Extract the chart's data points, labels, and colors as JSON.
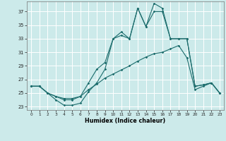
{
  "title": "",
  "xlabel": "Humidex (Indice chaleur)",
  "ylabel": "",
  "bg_color": "#cceaea",
  "line_color": "#1a6b6b",
  "grid_color": "#ffffff",
  "xlim": [
    -0.5,
    23.5
  ],
  "ylim": [
    22.5,
    38.5
  ],
  "yticks": [
    23,
    25,
    27,
    29,
    31,
    33,
    35,
    37
  ],
  "xticks": [
    0,
    1,
    2,
    3,
    4,
    5,
    6,
    7,
    8,
    9,
    10,
    11,
    12,
    13,
    14,
    15,
    16,
    17,
    18,
    19,
    20,
    21,
    22,
    23
  ],
  "line1_x": [
    0,
    1,
    2,
    3,
    4,
    5,
    6,
    7,
    8,
    9,
    10,
    11,
    12,
    13,
    14,
    15,
    16,
    17,
    18,
    19,
    20,
    21,
    22,
    23
  ],
  "line1_y": [
    26,
    26,
    25,
    24,
    23.2,
    23.2,
    23.5,
    25.2,
    26.5,
    28.5,
    33,
    33.5,
    33,
    37.5,
    34.8,
    38.2,
    37.5,
    33,
    33,
    33,
    26,
    26.2,
    26.5,
    25
  ],
  "line2_x": [
    0,
    1,
    2,
    3,
    4,
    5,
    6,
    7,
    8,
    9,
    10,
    11,
    12,
    13,
    14,
    15,
    16,
    17,
    18,
    19,
    20,
    21,
    22,
    23
  ],
  "line2_y": [
    26,
    26,
    25,
    24.5,
    24,
    24,
    24.5,
    26.5,
    28.5,
    29.5,
    33,
    34,
    33,
    37.5,
    34.8,
    37,
    37,
    33,
    33,
    33,
    26,
    26.2,
    26.5,
    25
  ],
  "line3_x": [
    0,
    1,
    2,
    3,
    4,
    5,
    6,
    7,
    8,
    9,
    10,
    11,
    12,
    13,
    14,
    15,
    16,
    17,
    18,
    19,
    20,
    21,
    22,
    23
  ],
  "line3_y": [
    26,
    26,
    25,
    24.5,
    24.2,
    24.2,
    24.5,
    25.5,
    26.3,
    27.2,
    27.8,
    28.4,
    29.0,
    29.7,
    30.3,
    30.8,
    31.0,
    31.5,
    32.0,
    30.2,
    25.5,
    26,
    26.5,
    25
  ]
}
